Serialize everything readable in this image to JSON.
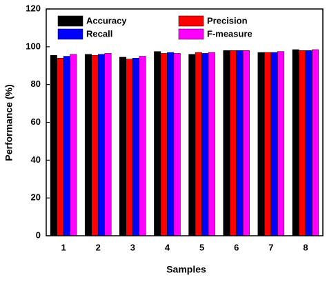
{
  "chart_data": {
    "type": "bar",
    "x_label": "Samples",
    "y_label": "Performance (%)",
    "categories": [
      "1",
      "2",
      "3",
      "4",
      "5",
      "6",
      "7",
      "8"
    ],
    "series": [
      {
        "name": "Accuracy",
        "color": "#000000",
        "values": [
          95.5,
          96,
          94.5,
          97.5,
          96,
          98,
          97,
          98.5
        ]
      },
      {
        "name": "Precision",
        "color": "#ff0000",
        "values": [
          94,
          95.5,
          93.5,
          96.5,
          97,
          98,
          97,
          98
        ]
      },
      {
        "name": "Recall",
        "color": "#0000ff",
        "values": [
          95,
          96,
          94,
          97,
          96.5,
          98,
          97,
          98
        ]
      },
      {
        "name": "F-measure",
        "color": "#ff00ff",
        "values": [
          96,
          96.5,
          95,
          96.5,
          97,
          98,
          97.5,
          98.5
        ]
      }
    ],
    "ylim": [
      0,
      120
    ],
    "yticks": [
      0,
      20,
      40,
      60,
      80,
      100,
      120
    ],
    "legend": "top"
  }
}
